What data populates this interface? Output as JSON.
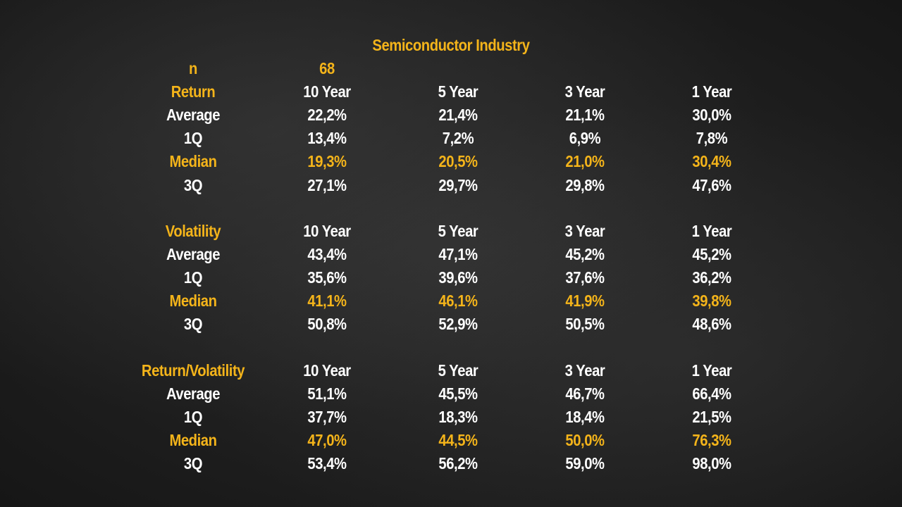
{
  "title": "Semiconductor Industry",
  "n": {
    "label": "n",
    "value": "68"
  },
  "colors": {
    "accent": "#f4b41a",
    "text": "#ffffff",
    "background": "#1c1c1c"
  },
  "sections": [
    {
      "header": "Return",
      "periods": [
        "10 Year",
        "5 Year",
        "3 Year",
        "1 Year"
      ],
      "rows": [
        {
          "label": "Average",
          "values": [
            "22,2%",
            "21,4%",
            "21,1%",
            "30,0%"
          ],
          "highlight": false
        },
        {
          "label": "1Q",
          "values": [
            "13,4%",
            "7,2%",
            "6,9%",
            "7,8%"
          ],
          "highlight": false
        },
        {
          "label": "Median",
          "values": [
            "19,3%",
            "20,5%",
            "21,0%",
            "30,4%"
          ],
          "highlight": true
        },
        {
          "label": "3Q",
          "values": [
            "27,1%",
            "29,7%",
            "29,8%",
            "47,6%"
          ],
          "highlight": false
        }
      ]
    },
    {
      "header": "Volatility",
      "periods": [
        "10 Year",
        "5 Year",
        "3 Year",
        "1 Year"
      ],
      "rows": [
        {
          "label": "Average",
          "values": [
            "43,4%",
            "47,1%",
            "45,2%",
            "45,2%"
          ],
          "highlight": false
        },
        {
          "label": "1Q",
          "values": [
            "35,6%",
            "39,6%",
            "37,6%",
            "36,2%"
          ],
          "highlight": false
        },
        {
          "label": "Median",
          "values": [
            "41,1%",
            "46,1%",
            "41,9%",
            "39,8%"
          ],
          "highlight": true
        },
        {
          "label": "3Q",
          "values": [
            "50,8%",
            "52,9%",
            "50,5%",
            "48,6%"
          ],
          "highlight": false
        }
      ]
    },
    {
      "header": "Return/Volatility",
      "periods": [
        "10 Year",
        "5 Year",
        "3 Year",
        "1 Year"
      ],
      "rows": [
        {
          "label": "Average",
          "values": [
            "51,1%",
            "45,5%",
            "46,7%",
            "66,4%"
          ],
          "highlight": false
        },
        {
          "label": "1Q",
          "values": [
            "37,7%",
            "18,3%",
            "18,4%",
            "21,5%"
          ],
          "highlight": false
        },
        {
          "label": "Median",
          "values": [
            "47,0%",
            "44,5%",
            "50,0%",
            "76,3%"
          ],
          "highlight": true
        },
        {
          "label": "3Q",
          "values": [
            "53,4%",
            "56,2%",
            "59,0%",
            "98,0%"
          ],
          "highlight": false
        }
      ]
    }
  ]
}
